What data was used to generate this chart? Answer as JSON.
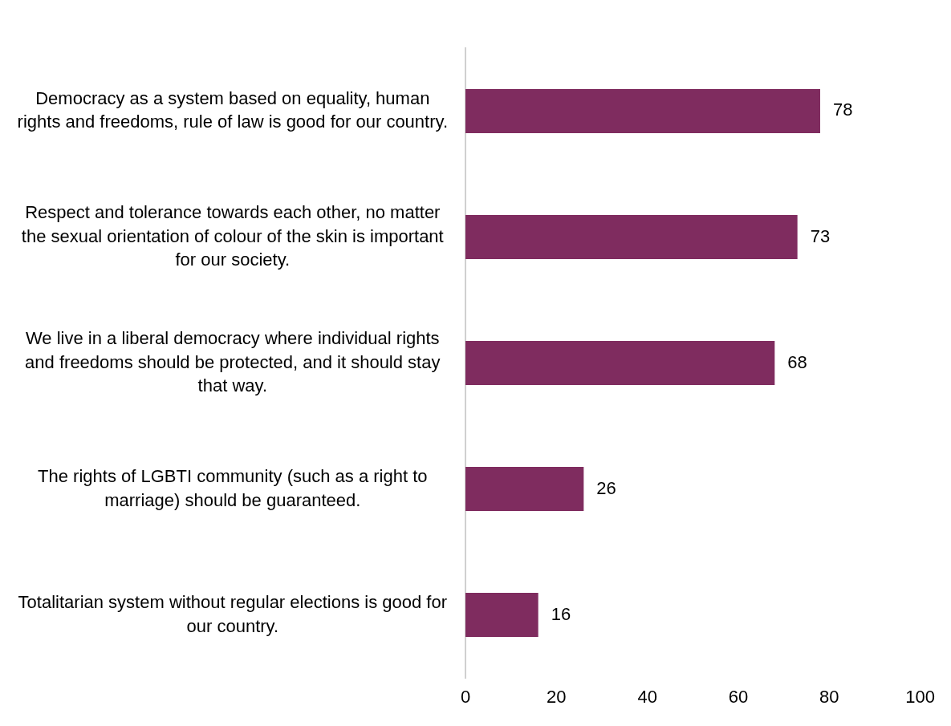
{
  "chart_data": {
    "type": "bar",
    "orientation": "horizontal",
    "categories": [
      "Democracy as a system based on equality, human rights and freedoms, rule of law is good for our country.",
      "Respect and tolerance towards each other, no matter the sexual orientation of colour of the skin is important for our society.",
      "We live in a liberal democracy where individual rights and freedoms should be protected, and it should stay that way.",
      "The rights of LGBTI community (such as a right to marriage) should be guaranteed.",
      "Totalitarian system without regular elections is good for our country."
    ],
    "values": [
      78,
      73,
      68,
      26,
      16
    ],
    "color": "#7f2c5f",
    "xlim": [
      0,
      100
    ],
    "xticks": [
      0,
      20,
      40,
      60,
      80,
      100
    ],
    "data_labels": true,
    "grid": false,
    "legend": false
  }
}
